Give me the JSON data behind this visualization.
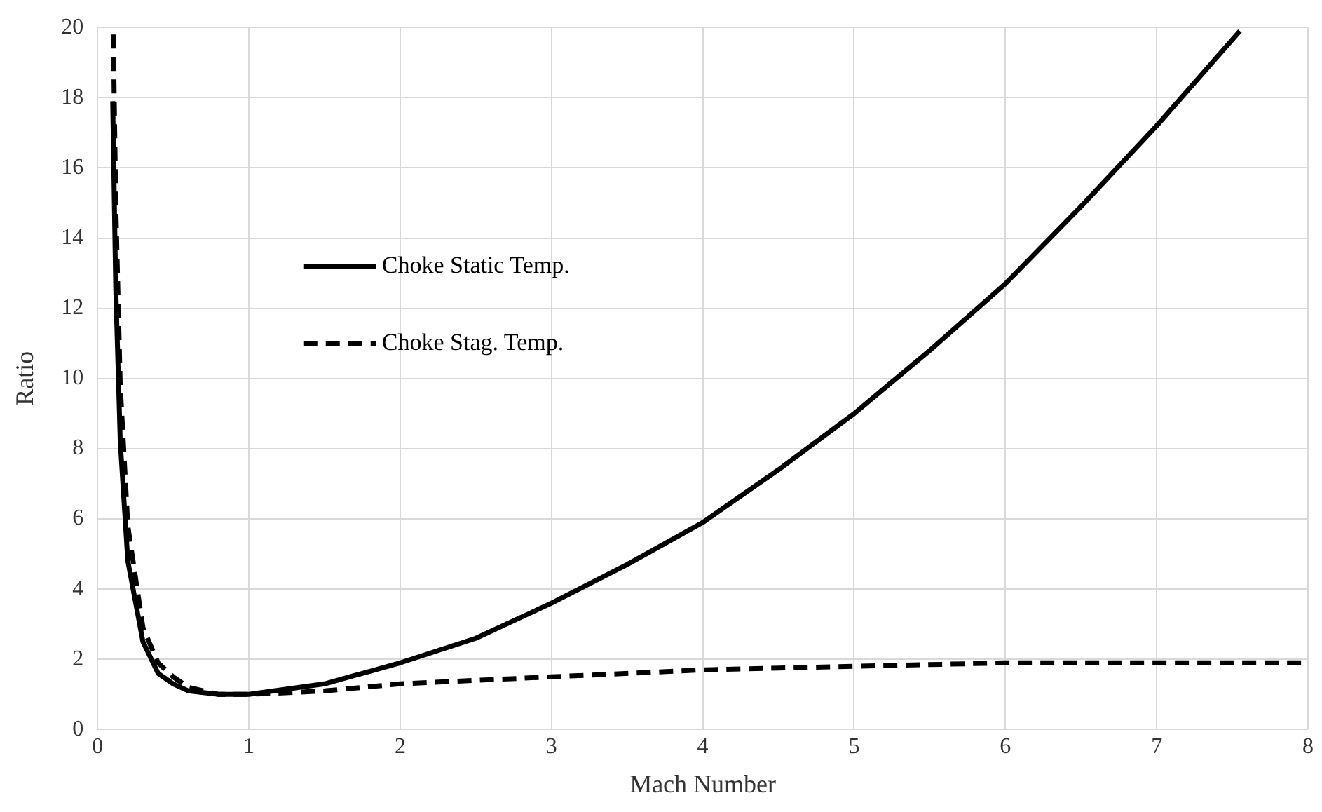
{
  "chart_data": {
    "type": "line",
    "xlabel": "Mach Number",
    "ylabel": "Ratio",
    "xlim": [
      0,
      8
    ],
    "xticks": [
      0,
      1,
      2,
      3,
      4,
      5,
      6,
      7,
      8
    ],
    "ylim": [
      0,
      20
    ],
    "yticks": [
      0,
      2,
      4,
      6,
      8,
      10,
      12,
      14,
      16,
      18,
      20
    ],
    "grid": true,
    "legend": "left",
    "marker": "none",
    "series": [
      {
        "name": "Choke Static Temp.",
        "color": "#000000",
        "line_style": "solid",
        "x": [
          0.1,
          0.12,
          0.15,
          0.2,
          0.3,
          0.4,
          0.5,
          0.6,
          0.8,
          1,
          1.5,
          2,
          2.5,
          3,
          3.5,
          4,
          4.5,
          5,
          5.5,
          6,
          6.5,
          7,
          7.55
        ],
        "values": [
          17.9,
          12.6,
          8.2,
          4.8,
          2.5,
          1.6,
          1.3,
          1.1,
          1.0,
          1.0,
          1.3,
          1.9,
          2.6,
          3.6,
          4.7,
          5.9,
          7.4,
          9.0,
          10.8,
          12.7,
          14.9,
          17.2,
          19.9
        ]
      },
      {
        "name": "Choke Stag. Temp.",
        "color": "#000000",
        "line_style": "dashed",
        "x": [
          0.104,
          0.12,
          0.15,
          0.2,
          0.3,
          0.4,
          0.5,
          0.6,
          0.8,
          1,
          1.5,
          2,
          3,
          4,
          5,
          6,
          7,
          8
        ],
        "values": [
          19.8,
          15.0,
          9.8,
          5.8,
          2.9,
          1.9,
          1.5,
          1.2,
          1.0,
          1.0,
          1.1,
          1.3,
          1.5,
          1.7,
          1.8,
          1.9,
          1.9,
          1.9
        ]
      }
    ]
  }
}
